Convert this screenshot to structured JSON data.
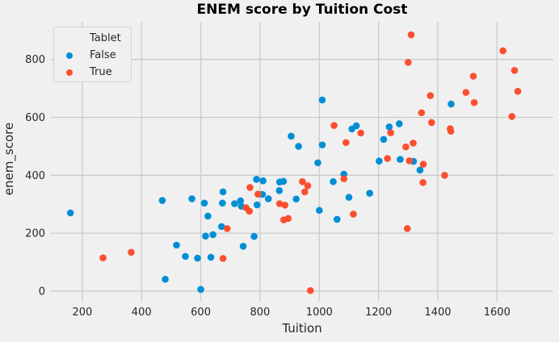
{
  "figure": {
    "background": "#f0f0f0"
  },
  "chart_data": {
    "type": "scatter",
    "title": "ENEM score by Tuition Cost",
    "xlabel": "Tuition",
    "ylabel": "enem_score",
    "xlim": [
      94,
      1790
    ],
    "ylim": [
      -21,
      930
    ],
    "x_ticks": [
      200,
      400,
      600,
      800,
      1000,
      1200,
      1400,
      1600
    ],
    "y_ticks": [
      0,
      200,
      400,
      600,
      800
    ],
    "grid": true,
    "grid_color": "#cbcbcb",
    "text_color": "#262626",
    "point_radius": 4.3,
    "legend": {
      "title": "Tablet",
      "position": "upper-left"
    },
    "series": [
      {
        "name": "False",
        "color": "#008fd5",
        "points": [
          [
            160,
            270
          ],
          [
            470,
            313
          ],
          [
            480,
            41
          ],
          [
            518,
            159
          ],
          [
            548,
            120
          ],
          [
            570,
            319
          ],
          [
            589,
            114
          ],
          [
            600,
            6
          ],
          [
            612,
            304
          ],
          [
            616,
            190
          ],
          [
            624,
            259
          ],
          [
            634,
            117
          ],
          [
            641,
            195
          ],
          [
            670,
            223
          ],
          [
            673,
            304
          ],
          [
            675,
            343
          ],
          [
            714,
            302
          ],
          [
            734,
            312
          ],
          [
            737,
            293
          ],
          [
            743,
            155
          ],
          [
            780,
            189
          ],
          [
            788,
            386
          ],
          [
            790,
            298
          ],
          [
            808,
            334
          ],
          [
            810,
            381
          ],
          [
            828,
            319
          ],
          [
            865,
            347
          ],
          [
            866,
            377
          ],
          [
            879,
            379
          ],
          [
            905,
            535
          ],
          [
            922,
            318
          ],
          [
            930,
            500
          ],
          [
            995,
            443
          ],
          [
            1000,
            279
          ],
          [
            1010,
            505
          ],
          [
            1010,
            660
          ],
          [
            1047,
            378
          ],
          [
            1060,
            248
          ],
          [
            1083,
            404
          ],
          [
            1100,
            324
          ],
          [
            1110,
            560
          ],
          [
            1125,
            571
          ],
          [
            1170,
            338
          ],
          [
            1202,
            449
          ],
          [
            1217,
            524
          ],
          [
            1236,
            567
          ],
          [
            1270,
            578
          ],
          [
            1273,
            455
          ],
          [
            1318,
            448
          ],
          [
            1340,
            418
          ],
          [
            1445,
            646
          ]
        ]
      },
      {
        "name": "True",
        "color": "#fc4f30",
        "points": [
          [
            270,
            115
          ],
          [
            365,
            134
          ],
          [
            675,
            113
          ],
          [
            689,
            216
          ],
          [
            753,
            288
          ],
          [
            764,
            276
          ],
          [
            766,
            358
          ],
          [
            793,
            335
          ],
          [
            866,
            302
          ],
          [
            880,
            246
          ],
          [
            884,
            297
          ],
          [
            895,
            251
          ],
          [
            943,
            378
          ],
          [
            951,
            343
          ],
          [
            961,
            364
          ],
          [
            970,
            2
          ],
          [
            1050,
            572
          ],
          [
            1083,
            388
          ],
          [
            1090,
            513
          ],
          [
            1115,
            266
          ],
          [
            1140,
            546
          ],
          [
            1230,
            458
          ],
          [
            1241,
            547
          ],
          [
            1292,
            498
          ],
          [
            1297,
            216
          ],
          [
            1300,
            790
          ],
          [
            1304,
            450
          ],
          [
            1310,
            885
          ],
          [
            1317,
            511
          ],
          [
            1345,
            616
          ],
          [
            1350,
            375
          ],
          [
            1351,
            438
          ],
          [
            1375,
            675
          ],
          [
            1379,
            582
          ],
          [
            1423,
            400
          ],
          [
            1442,
            561
          ],
          [
            1444,
            552
          ],
          [
            1495,
            686
          ],
          [
            1520,
            742
          ],
          [
            1523,
            651
          ],
          [
            1620,
            830
          ],
          [
            1650,
            603
          ],
          [
            1659,
            762
          ],
          [
            1670,
            690
          ]
        ]
      }
    ]
  }
}
